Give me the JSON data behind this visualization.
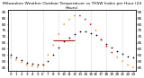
{
  "title": "Milwaukee Weather Outdoor Temperature vs THSW Index per Hour (24 Hours)",
  "hours": [
    0,
    1,
    2,
    3,
    4,
    5,
    6,
    7,
    8,
    9,
    10,
    11,
    12,
    13,
    14,
    15,
    16,
    17,
    18,
    19,
    20,
    21,
    22,
    23
  ],
  "temp": [
    55,
    53,
    51,
    49,
    48,
    47,
    47,
    50,
    55,
    61,
    66,
    69,
    72,
    74,
    74,
    73,
    71,
    68,
    64,
    61,
    58,
    56,
    54,
    53
  ],
  "thsw": [
    53,
    51,
    49,
    47,
    46,
    45,
    47,
    55,
    63,
    72,
    80,
    84,
    87,
    87,
    84,
    80,
    75,
    68,
    62,
    57,
    53,
    50,
    47,
    45
  ],
  "temp_color": "#000000",
  "thsw_colors": [
    "#ff8800",
    "#ff8800",
    "#ff8800",
    "#ff8800",
    "#ff8800",
    "#ff8800",
    "#ff8800",
    "#ff8800",
    "#ff8800",
    "#ff8800",
    "#ff8800",
    "#ff8800",
    "#ff8800",
    "#ff0000",
    "#ff0000",
    "#ff0000",
    "#ff8800",
    "#ff8800",
    "#ff0000",
    "#ff0000",
    "#ff8800",
    "#ff8800",
    "#ff8800",
    "#ff8800"
  ],
  "grid_color": "#bbbbbb",
  "bg_color": "#ffffff",
  "ylim_min": 42,
  "ylim_max": 92,
  "xlim_min": -0.5,
  "xlim_max": 23.5,
  "marker_size": 1.5,
  "tick_label_fontsize": 3.0,
  "title_fontsize": 3.2,
  "grid_hours": [
    0,
    3,
    6,
    9,
    12,
    15,
    18,
    21
  ],
  "red_line_x": [
    8.0,
    12.0
  ],
  "red_line_y": [
    67,
    67
  ],
  "yticks": [
    45,
    50,
    55,
    60,
    65,
    70,
    75,
    80,
    85,
    90
  ]
}
